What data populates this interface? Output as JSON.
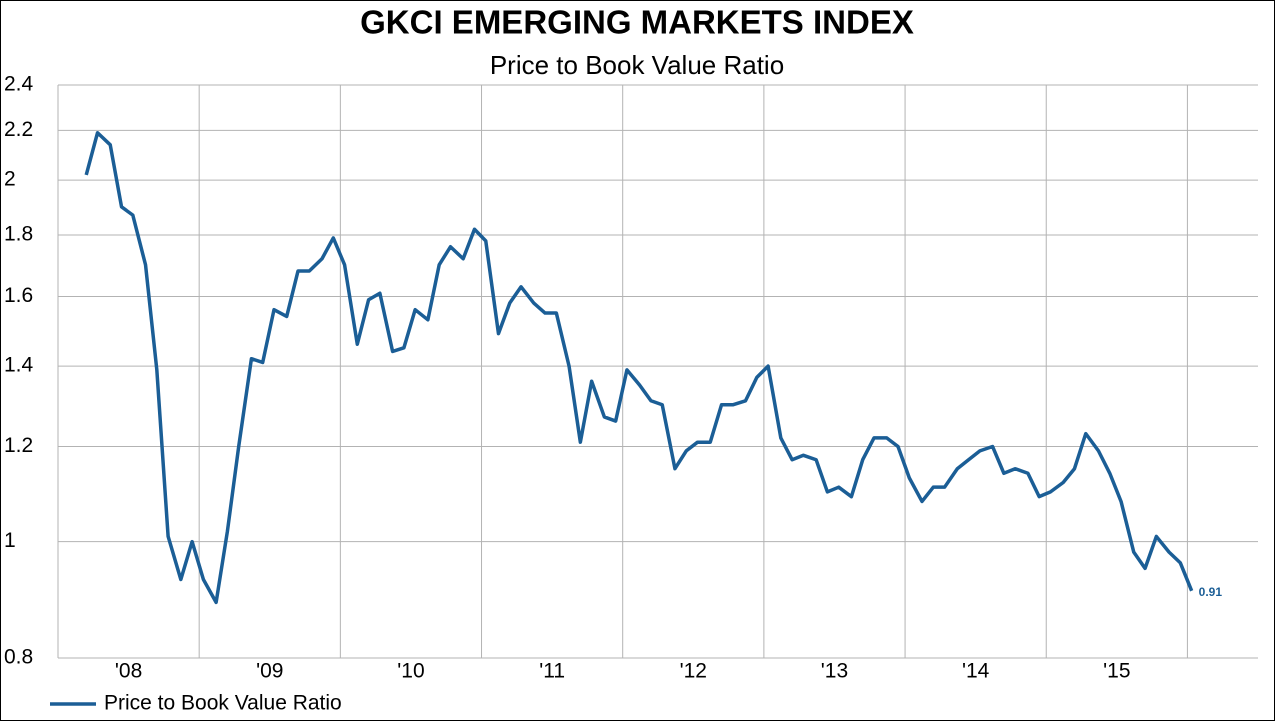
{
  "chart_data": {
    "type": "line",
    "title": "GKCI EMERGING MARKETS INDEX",
    "subtitle": "Price to Book Value Ratio",
    "x": [
      2008.2,
      2008.28,
      2008.37,
      2008.45,
      2008.53,
      2008.62,
      2008.7,
      2008.78,
      2008.87,
      2008.95,
      2009.03,
      2009.12,
      2009.2,
      2009.28,
      2009.37,
      2009.45,
      2009.53,
      2009.62,
      2009.7,
      2009.78,
      2009.87,
      2009.95,
      2010.03,
      2010.12,
      2010.2,
      2010.28,
      2010.37,
      2010.45,
      2010.53,
      2010.62,
      2010.7,
      2010.78,
      2010.87,
      2010.95,
      2011.03,
      2011.12,
      2011.2,
      2011.28,
      2011.37,
      2011.45,
      2011.53,
      2011.62,
      2011.7,
      2011.78,
      2011.87,
      2011.95,
      2012.03,
      2012.12,
      2012.2,
      2012.28,
      2012.37,
      2012.45,
      2012.53,
      2012.62,
      2012.7,
      2012.78,
      2012.87,
      2012.95,
      2013.03,
      2013.12,
      2013.2,
      2013.28,
      2013.37,
      2013.45,
      2013.53,
      2013.62,
      2013.7,
      2013.78,
      2013.87,
      2013.95,
      2014.03,
      2014.12,
      2014.2,
      2014.28,
      2014.37,
      2014.45,
      2014.53,
      2014.62,
      2014.7,
      2014.78,
      2014.87,
      2014.95,
      2015.03,
      2015.12,
      2015.2,
      2015.28,
      2015.37,
      2015.45,
      2015.53,
      2015.62,
      2015.7,
      2015.78,
      2015.87,
      2015.95,
      2016.03
    ],
    "series": [
      {
        "name": "Price to Book Value Ratio",
        "color": "#1b5e96",
        "values": [
          2.02,
          2.19,
          2.14,
          1.9,
          1.87,
          1.7,
          1.39,
          1.01,
          0.93,
          1.0,
          0.93,
          0.89,
          1.02,
          1.2,
          1.42,
          1.41,
          1.56,
          1.54,
          1.68,
          1.68,
          1.72,
          1.79,
          1.7,
          1.46,
          1.59,
          1.61,
          1.44,
          1.45,
          1.56,
          1.53,
          1.7,
          1.76,
          1.72,
          1.82,
          1.78,
          1.49,
          1.58,
          1.63,
          1.58,
          1.55,
          1.55,
          1.4,
          1.21,
          1.36,
          1.27,
          1.26,
          1.39,
          1.35,
          1.31,
          1.3,
          1.15,
          1.19,
          1.21,
          1.21,
          1.3,
          1.3,
          1.31,
          1.37,
          1.4,
          1.22,
          1.17,
          1.18,
          1.17,
          1.1,
          1.11,
          1.09,
          1.17,
          1.22,
          1.22,
          1.2,
          1.13,
          1.08,
          1.11,
          1.11,
          1.15,
          1.17,
          1.19,
          1.2,
          1.14,
          1.15,
          1.14,
          1.09,
          1.1,
          1.12,
          1.15,
          1.23,
          1.19,
          1.14,
          1.08,
          0.98,
          0.95,
          1.01,
          0.98,
          0.96,
          0.91
        ]
      }
    ],
    "xlim": [
      2008,
      2016.5
    ],
    "xticks": [
      {
        "value": 2008.5,
        "label": "'08"
      },
      {
        "value": 2009.5,
        "label": "'09"
      },
      {
        "value": 2010.5,
        "label": "'10"
      },
      {
        "value": 2011.5,
        "label": "'11"
      },
      {
        "value": 2012.5,
        "label": "'12"
      },
      {
        "value": 2013.5,
        "label": "'13"
      },
      {
        "value": 2014.5,
        "label": "'14"
      },
      {
        "value": 2015.5,
        "label": "'15"
      }
    ],
    "x_gridlines": [
      2009,
      2010,
      2011,
      2012,
      2013,
      2014,
      2015,
      2016
    ],
    "ylim": [
      0.8,
      2.4
    ],
    "yticks": [
      0.8,
      1,
      1.2,
      1.4,
      1.6,
      1.8,
      2,
      2.2,
      2.4
    ],
    "log_scale_y": true,
    "grid": true,
    "legend": "bottom-left",
    "last_value_label": true
  }
}
